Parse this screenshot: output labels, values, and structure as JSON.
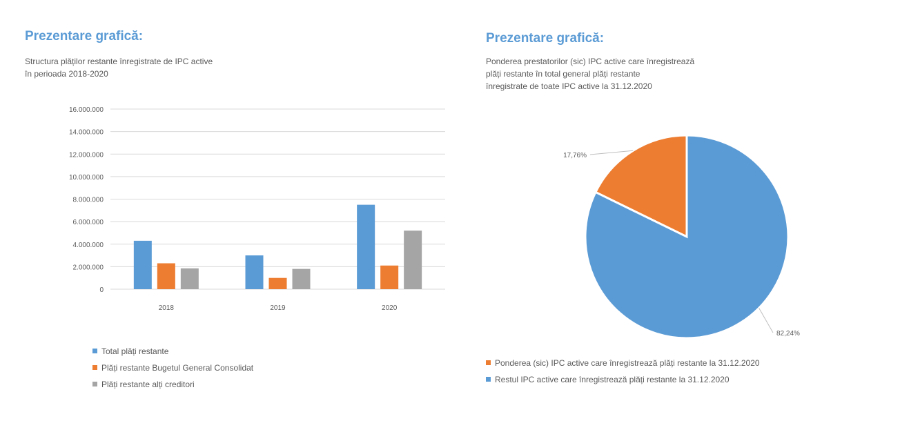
{
  "colors": {
    "heading": "#5b9bd5",
    "series_blue": "#5b9bd5",
    "series_orange": "#ed7d31",
    "series_gray": "#a5a5a5",
    "grid": "#d9d9d9",
    "text": "#595959"
  },
  "left": {
    "heading": "Prezentare grafică:",
    "subtitle_line1": "Structura plăților restante înregistrate de IPC active",
    "subtitle_line2": "în perioada 2018-2020"
  },
  "right": {
    "heading": "Prezentare grafică:",
    "subtitle_line1": "Ponderea prestatorilor (sic) IPC active care înregistrează",
    "subtitle_line2": "plăți restante în total general plăți restante",
    "subtitle_line3": "înregistrate de toate IPC active la 31.12.2020"
  },
  "chart_data": [
    {
      "type": "bar",
      "categories": [
        "2018",
        "2019",
        "2020"
      ],
      "series": [
        {
          "name": "Total plăți restante",
          "values": [
            4300000,
            3000000,
            7500000
          ],
          "color": "#5b9bd5"
        },
        {
          "name": "Plăți restante Bugetul General Consolidat",
          "values": [
            2300000,
            1000000,
            2100000
          ],
          "color": "#ed7d31"
        },
        {
          "name": "Plăți restante alți creditori",
          "values": [
            1850000,
            1800000,
            5200000
          ],
          "color": "#a5a5a5"
        }
      ],
      "ylim": [
        0,
        16000000
      ],
      "yticks": [
        "0",
        "2.000.000",
        "4.000.000",
        "6.000.000",
        "8.000.000",
        "10.000.000",
        "12.000.000",
        "14.000.000",
        "16.000.000"
      ],
      "ytick_values": [
        0,
        2000000,
        4000000,
        6000000,
        8000000,
        10000000,
        12000000,
        14000000,
        16000000
      ],
      "grid": true,
      "legend_position": "bottom"
    },
    {
      "type": "pie",
      "slices": [
        {
          "name": "Ponderea (sic) IPC active care înregistrează plăți restante la 31.12.2020",
          "value": 17.76,
          "label": "17,76%",
          "color": "#ed7d31"
        },
        {
          "name": "Restul IPC active care înregistrează plăți restante la 31.12.2020",
          "value": 82.24,
          "label": "82,24%",
          "color": "#5b9bd5"
        }
      ],
      "legend_position": "bottom"
    }
  ]
}
